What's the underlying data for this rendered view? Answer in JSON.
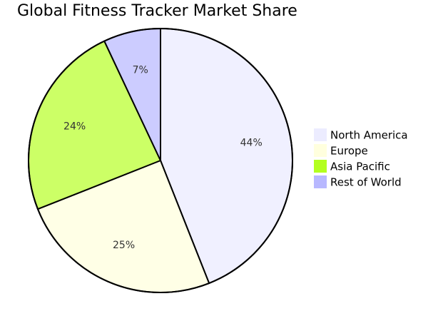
{
  "chart_data": {
    "type": "pie",
    "title": "Global Fitness Tracker Market Share",
    "slices": [
      {
        "label": "North America",
        "value": 44,
        "display": "44%",
        "color": "#f0f0ff"
      },
      {
        "label": "Europe",
        "value": 25,
        "display": "25%",
        "color": "#ffffe6"
      },
      {
        "label": "Asia Pacific",
        "value": 24,
        "display": "24%",
        "color": "#ccff66"
      },
      {
        "label": "Rest of World",
        "value": 7,
        "display": "7%",
        "color": "#ccccff"
      }
    ],
    "legend": {
      "position": "right",
      "entries": [
        {
          "label": "North America",
          "color": "#ececff"
        },
        {
          "label": "Europe",
          "color": "#ffffde"
        },
        {
          "label": "Asia Pacific",
          "color": "#b3ff1f"
        },
        {
          "label": "Rest of World",
          "color": "#b8b8ff"
        }
      ]
    }
  }
}
